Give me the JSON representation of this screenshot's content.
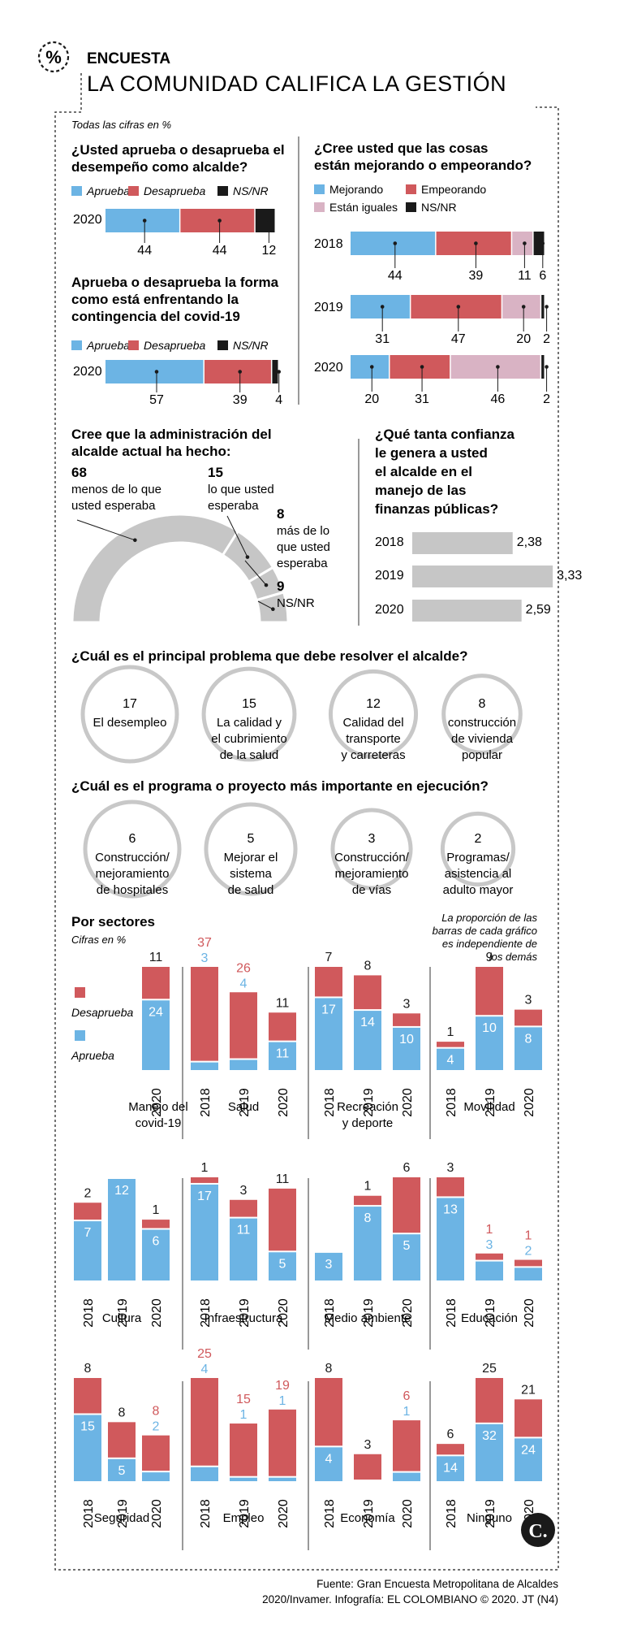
{
  "header": {
    "section": "ENCUESTA",
    "headline": "LA COMUNIDAD CALIFICA LA GESTIÓN",
    "units_note": "Todas las cifras en %"
  },
  "colors": {
    "aprueba": "#6cb4e4",
    "desaprueba": "#d0595c",
    "nsnr": "#1a1a1a",
    "iguales": "#d9b3c4",
    "gray": "#c6c6c6"
  },
  "chart_data": [
    {
      "id": "aprobacion",
      "type": "bar",
      "orientation": "horizontal-stacked",
      "title": "¿Usted aprueba o desaprueba el desempeño como alcalde?",
      "legend": [
        "Aprueba",
        "Desaprueba",
        "NS/NR"
      ],
      "categories": [
        "2020"
      ],
      "series": [
        {
          "name": "Aprueba",
          "values": [
            44
          ]
        },
        {
          "name": "Desaprueba",
          "values": [
            44
          ]
        },
        {
          "name": "NS/NR",
          "values": [
            12
          ]
        }
      ]
    },
    {
      "id": "covid",
      "type": "bar",
      "orientation": "horizontal-stacked",
      "title": "Aprueba o desaprueba la forma como está enfrentando la contingencia del covid-19",
      "legend": [
        "Aprueba",
        "Desaprueba",
        "NS/NR"
      ],
      "categories": [
        "2020"
      ],
      "series": [
        {
          "name": "Aprueba",
          "values": [
            57
          ]
        },
        {
          "name": "Desaprueba",
          "values": [
            39
          ]
        },
        {
          "name": "NS/NR",
          "values": [
            4
          ]
        }
      ]
    },
    {
      "id": "tendencia",
      "type": "bar",
      "orientation": "horizontal-stacked",
      "title": "¿Cree usted que las cosas están mejorando o empeorando?",
      "legend": [
        "Mejorando",
        "Empeorando",
        "Están iguales",
        "NS/NR"
      ],
      "categories": [
        "2018",
        "2019",
        "2020"
      ],
      "series": [
        {
          "name": "Mejorando",
          "values": [
            44,
            31,
            20
          ]
        },
        {
          "name": "Empeorando",
          "values": [
            39,
            47,
            31
          ]
        },
        {
          "name": "Están iguales",
          "values": [
            11,
            20,
            46
          ]
        },
        {
          "name": "NS/NR",
          "values": [
            6,
            2,
            2
          ]
        }
      ]
    },
    {
      "id": "expectativa",
      "type": "pie",
      "title": "Cree que la administración del alcalde actual ha hecho:",
      "slices": [
        {
          "label": "menos de lo que usted esperaba",
          "value": 68
        },
        {
          "label": "lo que usted esperaba",
          "value": 15
        },
        {
          "label": "más de lo que usted esperaba",
          "value": 8
        },
        {
          "label": "NS/NR",
          "value": 9
        }
      ]
    },
    {
      "id": "confianza",
      "type": "bar",
      "orientation": "horizontal",
      "title": "¿Qué tanta confianza le genera a usted el alcalde en el manejo de las finanzas públicas?",
      "categories": [
        "2018",
        "2019",
        "2020"
      ],
      "values": [
        2.38,
        3.33,
        2.59
      ],
      "labels": [
        "2,38",
        "3,33",
        "2,59"
      ]
    },
    {
      "id": "problema",
      "type": "bubble",
      "title": "¿Cuál es el principal problema que debe resolver el alcalde?",
      "items": [
        {
          "value": 17,
          "label": [
            "El desempleo"
          ]
        },
        {
          "value": 15,
          "label": [
            "La calidad y",
            "el cubrimiento",
            "de la salud"
          ]
        },
        {
          "value": 12,
          "label": [
            "Calidad del",
            "transporte",
            "y carreteras"
          ]
        },
        {
          "value": 8,
          "label": [
            "construcción",
            "de vivienda",
            "popular"
          ]
        }
      ]
    },
    {
      "id": "programa",
      "type": "bubble",
      "title": "¿Cuál es el programa o proyecto más importante en ejecución?",
      "items": [
        {
          "value": 6,
          "label": [
            "Construcción/",
            "mejoramiento",
            "de hospitales"
          ]
        },
        {
          "value": 5,
          "label": [
            "Mejorar el",
            "sistema",
            "de salud"
          ]
        },
        {
          "value": 3,
          "label": [
            "Construcción/",
            "mejoramiento",
            "de vías"
          ]
        },
        {
          "value": 2,
          "label": [
            "Programas/",
            "asistencia al",
            "adulto mayor"
          ]
        }
      ]
    },
    {
      "id": "sectores",
      "type": "bar",
      "orientation": "vertical-stacked",
      "title": "Por sectores",
      "subtitle": "Cifras en %",
      "note": "La proporción de las barras de cada gráfico es independiente de los demás",
      "legend": [
        "Desaprueba",
        "Aprueba"
      ],
      "groups": [
        {
          "name": "Manejo del covid-19",
          "years": [
            "2020"
          ],
          "aprueba": [
            24
          ],
          "desaprueba": [
            11
          ]
        },
        {
          "name": "Salud",
          "years": [
            "2018",
            "2019",
            "2020"
          ],
          "aprueba": [
            3,
            4,
            11
          ],
          "desaprueba": [
            37,
            26,
            11
          ]
        },
        {
          "name": "Recreación y deporte",
          "years": [
            "2018",
            "2019",
            "2020"
          ],
          "aprueba": [
            17,
            14,
            10
          ],
          "desaprueba": [
            7,
            8,
            3
          ]
        },
        {
          "name": "Movilidad",
          "years": [
            "2018",
            "2019",
            "2020"
          ],
          "aprueba": [
            4,
            10,
            8
          ],
          "desaprueba": [
            1,
            9,
            3
          ]
        },
        {
          "name": "Cultura",
          "years": [
            "2018",
            "2019",
            "2020"
          ],
          "aprueba": [
            7,
            12,
            6
          ],
          "desaprueba": [
            2,
            0,
            1
          ]
        },
        {
          "name": "Infraestructura",
          "years": [
            "2018",
            "2019",
            "2020"
          ],
          "aprueba": [
            17,
            11,
            5
          ],
          "desaprueba": [
            1,
            3,
            11
          ]
        },
        {
          "name": "Medio ambiente",
          "years": [
            "2018",
            "2019",
            "2020"
          ],
          "aprueba": [
            3,
            8,
            5
          ],
          "desaprueba": [
            0,
            1,
            6
          ]
        },
        {
          "name": "Educación",
          "years": [
            "2018",
            "2019",
            "2020"
          ],
          "aprueba": [
            13,
            3,
            2
          ],
          "desaprueba": [
            3,
            1,
            1
          ]
        },
        {
          "name": "Seguridad",
          "years": [
            "2018",
            "2019",
            "2020"
          ],
          "aprueba": [
            15,
            5,
            2
          ],
          "desaprueba": [
            8,
            8,
            8
          ]
        },
        {
          "name": "Empleo",
          "years": [
            "2018",
            "2019",
            "2020"
          ],
          "aprueba": [
            4,
            1,
            1
          ],
          "desaprueba": [
            25,
            15,
            19
          ]
        },
        {
          "name": "Economía",
          "years": [
            "2018",
            "2019",
            "2020"
          ],
          "aprueba": [
            4,
            0,
            1
          ],
          "desaprueba": [
            8,
            3,
            6
          ]
        },
        {
          "name": "Ninguno",
          "years": [
            "2018",
            "2019",
            "2020"
          ],
          "aprueba": [
            14,
            32,
            24
          ],
          "desaprueba": [
            6,
            25,
            21
          ]
        }
      ]
    }
  ],
  "footer": {
    "source_line1": "Fuente: Gran Encuesta Metropolitana de Alcaldes",
    "source_line2": "2020/Invamer. Infografía: EL COLOMBIANO © 2020. JT (N4)",
    "logo_letter": "C."
  }
}
